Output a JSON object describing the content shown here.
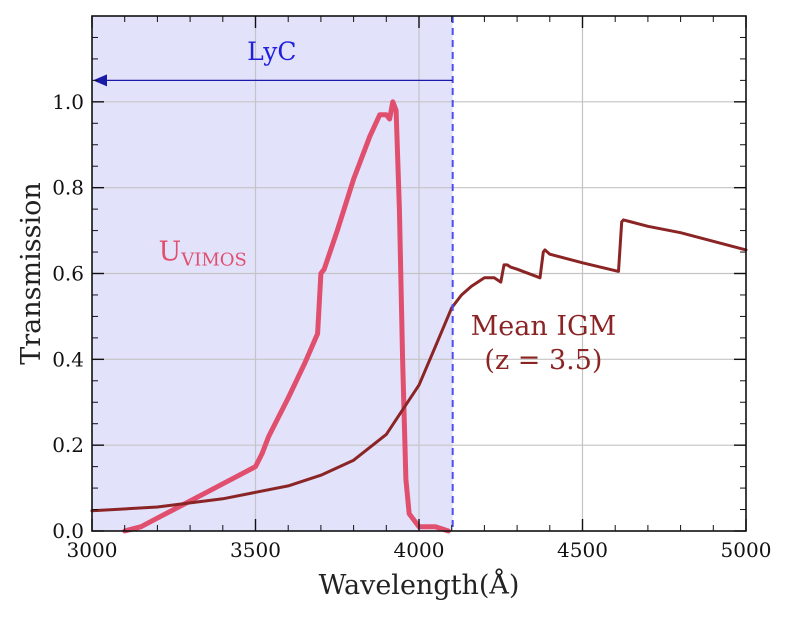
{
  "chart_data": {
    "type": "line",
    "xlabel": "Wavelength(Å)",
    "ylabel": "Transmission",
    "xlim": [
      3000,
      5000
    ],
    "ylim": [
      0,
      1.2
    ],
    "x_ticks": [
      {
        "value": 3000,
        "label": "3000"
      },
      {
        "value": 3500,
        "label": "3500"
      },
      {
        "value": 4000,
        "label": "4000"
      },
      {
        "value": 4500,
        "label": "4500"
      },
      {
        "value": 5000,
        "label": "5000"
      }
    ],
    "y_ticks": [
      {
        "value": 0.0,
        "label": "0.0"
      },
      {
        "value": 0.2,
        "label": "0.2"
      },
      {
        "value": 0.4,
        "label": "0.4"
      },
      {
        "value": 0.6,
        "label": "0.6"
      },
      {
        "value": 0.8,
        "label": "0.8"
      },
      {
        "value": 1.0,
        "label": "1.0"
      }
    ],
    "grid": true,
    "shaded_region": {
      "label": "LyC",
      "x_range": [
        3000,
        4103
      ],
      "color": "#e2e2fb",
      "arrow_y": 1.05,
      "boundary_color": "#4d4df0",
      "label_color": "#2020dd"
    },
    "series": [
      {
        "name": "U_VIMOS",
        "label_main": "U",
        "label_sub": "VIMOS",
        "color": "#e0506e",
        "label_at": {
          "x": 3350,
          "y": 0.63
        },
        "x": [
          3100,
          3150,
          3200,
          3250,
          3300,
          3350,
          3400,
          3450,
          3500,
          3520,
          3540,
          3560,
          3600,
          3650,
          3690,
          3700,
          3710,
          3750,
          3800,
          3850,
          3880,
          3900,
          3910,
          3920,
          3930,
          3940,
          3950,
          3960,
          3970,
          4000,
          4050,
          4090
        ],
        "y": [
          0.0,
          0.01,
          0.03,
          0.05,
          0.07,
          0.09,
          0.11,
          0.13,
          0.15,
          0.18,
          0.22,
          0.25,
          0.31,
          0.39,
          0.46,
          0.6,
          0.61,
          0.7,
          0.82,
          0.92,
          0.97,
          0.97,
          0.96,
          1.0,
          0.98,
          0.75,
          0.4,
          0.12,
          0.04,
          0.01,
          0.01,
          0.0
        ]
      },
      {
        "name": "Mean IGM (z = 3.5)",
        "label_line1": "Mean IGM",
        "label_line2": "(z = 3.5)",
        "color": "#8b2525",
        "label_at": {
          "x": 4350,
          "y": 0.45
        },
        "x": [
          3000,
          3200,
          3400,
          3600,
          3700,
          3800,
          3900,
          4000,
          4050,
          4100,
          4130,
          4160,
          4200,
          4230,
          4250,
          4260,
          4270,
          4280,
          4300,
          4370,
          4380,
          4385,
          4400,
          4500,
          4610,
          4620,
          4625,
          4650,
          4700,
          4800,
          4900,
          5000
        ],
        "y": [
          0.047,
          0.056,
          0.075,
          0.105,
          0.13,
          0.165,
          0.225,
          0.34,
          0.43,
          0.52,
          0.55,
          0.57,
          0.59,
          0.59,
          0.58,
          0.62,
          0.62,
          0.615,
          0.61,
          0.59,
          0.65,
          0.655,
          0.645,
          0.625,
          0.605,
          0.72,
          0.725,
          0.72,
          0.71,
          0.695,
          0.675,
          0.655
        ]
      }
    ]
  }
}
